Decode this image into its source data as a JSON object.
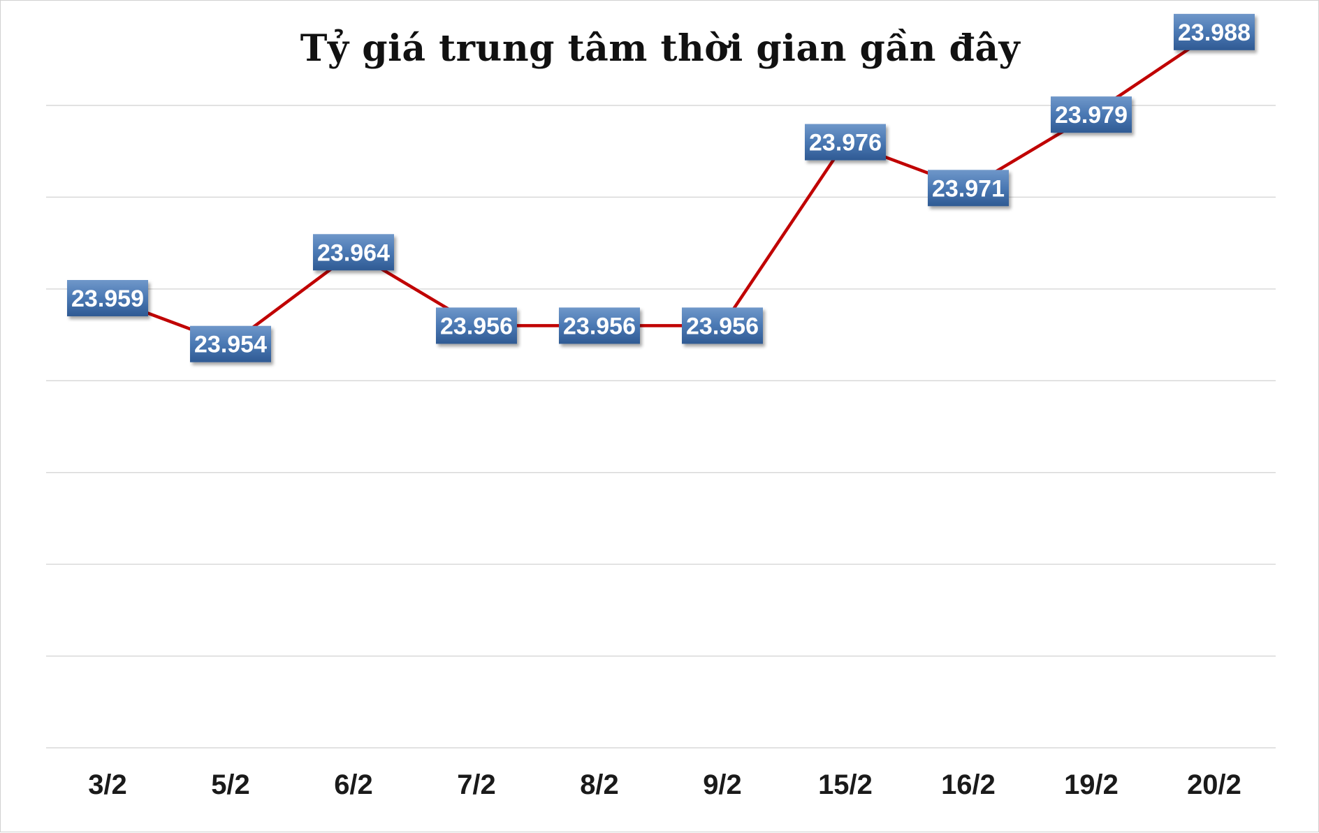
{
  "chart_data": {
    "type": "line",
    "title": "Tỷ giá trung tâm thời gian gần đây",
    "categories": [
      "3/2",
      "5/2",
      "6/2",
      "7/2",
      "8/2",
      "9/2",
      "15/2",
      "16/2",
      "19/2",
      "20/2"
    ],
    "series": [
      {
        "values": [
          23959,
          23954,
          23964,
          23956,
          23956,
          23956,
          23976,
          23971,
          23979,
          23988
        ],
        "labels": [
          "23.959",
          "23.954",
          "23.964",
          "23.956",
          "23.956",
          "23.956",
          "23.976",
          "23.971",
          "23.979",
          "23.988"
        ],
        "color": "#c00000"
      }
    ],
    "ylim": [
      23910,
      23980
    ],
    "grid": true,
    "legend": "none",
    "label_box_color": "#4a78b3"
  }
}
